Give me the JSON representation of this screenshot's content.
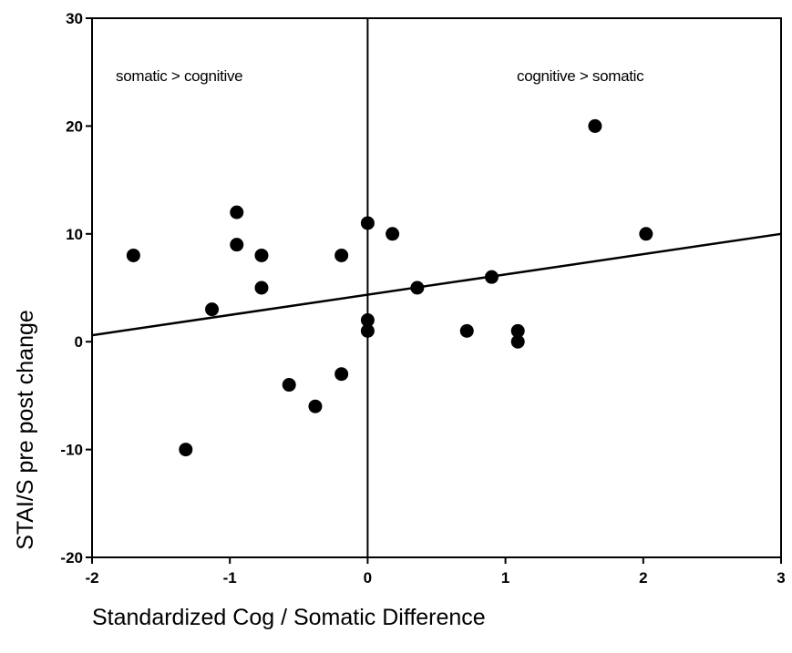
{
  "chart_data": {
    "type": "scatter",
    "title": "",
    "xlabel": "Standardized Cog / Somatic Difference",
    "ylabel": "STAI/S pre post change",
    "xlim": [
      -2,
      3
    ],
    "ylim": [
      -20,
      30
    ],
    "x_ticks": [
      -2,
      -1,
      0,
      1,
      2,
      3
    ],
    "y_ticks": [
      -20,
      -10,
      0,
      10,
      20,
      30
    ],
    "annotations": [
      {
        "text": "somatic > cognitive",
        "region": "top-left"
      },
      {
        "text": "cognitive > somatic",
        "region": "top-right"
      }
    ],
    "reference_line_x": 0,
    "grid": false,
    "points": [
      {
        "x": -1.7,
        "y": 8
      },
      {
        "x": -1.32,
        "y": -10
      },
      {
        "x": -1.13,
        "y": 3
      },
      {
        "x": -0.95,
        "y": 12
      },
      {
        "x": -0.95,
        "y": 9
      },
      {
        "x": -0.77,
        "y": 8
      },
      {
        "x": -0.77,
        "y": 5
      },
      {
        "x": -0.57,
        "y": -4
      },
      {
        "x": -0.38,
        "y": -6
      },
      {
        "x": -0.19,
        "y": 8
      },
      {
        "x": -0.19,
        "y": -3
      },
      {
        "x": 0.0,
        "y": 11
      },
      {
        "x": 0.0,
        "y": 2
      },
      {
        "x": 0.0,
        "y": 1
      },
      {
        "x": 0.18,
        "y": 10
      },
      {
        "x": 0.36,
        "y": 5
      },
      {
        "x": 0.72,
        "y": 1
      },
      {
        "x": 0.9,
        "y": 6
      },
      {
        "x": 1.09,
        "y": 1
      },
      {
        "x": 1.09,
        "y": 0
      },
      {
        "x": 1.65,
        "y": 20
      },
      {
        "x": 2.02,
        "y": 10
      }
    ],
    "fit_line": {
      "x": [
        -2,
        3
      ],
      "y": [
        0.6,
        10
      ]
    }
  }
}
